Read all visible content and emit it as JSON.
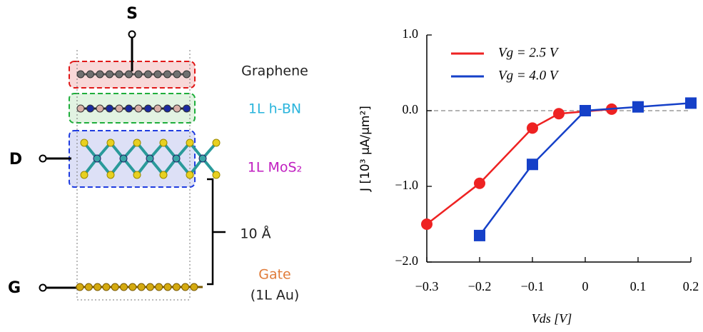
{
  "diagram": {
    "terminals": {
      "source": "S",
      "drain": "D",
      "gate": "G"
    },
    "layers": {
      "graphene": "Graphene",
      "hbn": "1L h-BN",
      "mos2": "1L MoS₂",
      "gate": "Gate",
      "gate_material": "(1L Au)"
    },
    "distance": "10 Å"
  },
  "chart_data": {
    "type": "line",
    "x_label": "Vds [V]",
    "y_label": "J [10³ μA/μm²]",
    "series": [
      {
        "name": "Vg = 2.5 V",
        "color": "#ee2222",
        "marker": "circle",
        "x": [
          -0.3,
          -0.2,
          -0.1,
          -0.05,
          0.05
        ],
        "values": [
          -1.5,
          -0.96,
          -0.23,
          -0.04,
          0.02
        ]
      },
      {
        "name": "Vg = 4.0 V",
        "color": "#1540c8",
        "marker": "square",
        "x": [
          -0.2,
          -0.1,
          0,
          0.1,
          0.2
        ],
        "values": [
          -1.65,
          -0.71,
          0.0,
          0.05,
          0.1
        ]
      }
    ],
    "xlim": [
      -0.3,
      0.2
    ],
    "xticks": [
      {
        "value": -0.3,
        "label": "−0.3"
      },
      {
        "value": -0.2,
        "label": "−0.2"
      },
      {
        "value": -0.1,
        "label": "−0.1"
      },
      0,
      0.1,
      0.2
    ],
    "ylim": [
      -2.0,
      1.0
    ],
    "yticks": [
      {
        "value": -2.0,
        "label": "−2.0"
      },
      {
        "value": -1.0,
        "label": "−1.0"
      },
      {
        "value": 0.0,
        "label": "0.0"
      },
      {
        "value": 1.0,
        "label": "1.0"
      }
    ],
    "zero_line": true,
    "legend": "upper left"
  }
}
